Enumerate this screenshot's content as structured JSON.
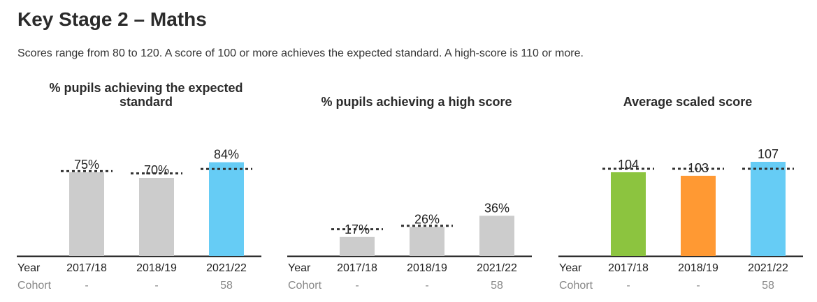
{
  "page": {
    "title": "Key Stage 2 – Maths",
    "subtitle": "Scores range from 80 to 120. A score of 100 or more achieves the expected standard. A high-score is 110 or more."
  },
  "colors": {
    "grey_bar": "#cccccc",
    "blue_bar": "#66ccf5",
    "green_bar": "#8cc43f",
    "orange_bar": "#ff9933",
    "benchmark": "#333333",
    "cohort_text": "#888888"
  },
  "row_labels": {
    "year": "Year",
    "cohort": "Cohort"
  },
  "chart_data": [
    {
      "type": "bar",
      "title": "% pupils achieving the expected standard",
      "categories": [
        "2017/18",
        "2018/19",
        "2021/22"
      ],
      "values": [
        75,
        70,
        84
      ],
      "value_labels": [
        "75%",
        "70%",
        "84%"
      ],
      "benchmarks": [
        76,
        74,
        78
      ],
      "bar_colors": [
        "#cccccc",
        "#cccccc",
        "#66ccf5"
      ],
      "cohort": [
        "-",
        "-",
        "58"
      ],
      "ylim": [
        0,
        100
      ],
      "scale_px_per_unit": 1.6,
      "grid": false
    },
    {
      "type": "bar",
      "title": "% pupils achieving a high score",
      "categories": [
        "2017/18",
        "2018/19",
        "2021/22"
      ],
      "values": [
        17,
        26,
        36
      ],
      "value_labels": [
        "17%",
        "26%",
        "36%"
      ],
      "benchmarks": [
        24,
        27,
        null
      ],
      "bar_colors": [
        "#cccccc",
        "#cccccc",
        "#cccccc"
      ],
      "cohort": [
        "-",
        "-",
        "58"
      ],
      "ylim": [
        0,
        100
      ],
      "scale_px_per_unit": 1.6,
      "grid": false
    },
    {
      "type": "bar",
      "title": "Average scaled score",
      "categories": [
        "2017/18",
        "2018/19",
        "2021/22"
      ],
      "values": [
        104,
        103,
        107
      ],
      "value_labels": [
        "104",
        "103",
        "107"
      ],
      "benchmarks": [
        105,
        105,
        105
      ],
      "bar_colors": [
        "#8cc43f",
        "#ff9933",
        "#66ccf5"
      ],
      "cohort": [
        "-",
        "-",
        "58"
      ],
      "ylim": [
        80,
        120
      ],
      "scale_px_per_unit": 5.0,
      "grid": false
    }
  ]
}
